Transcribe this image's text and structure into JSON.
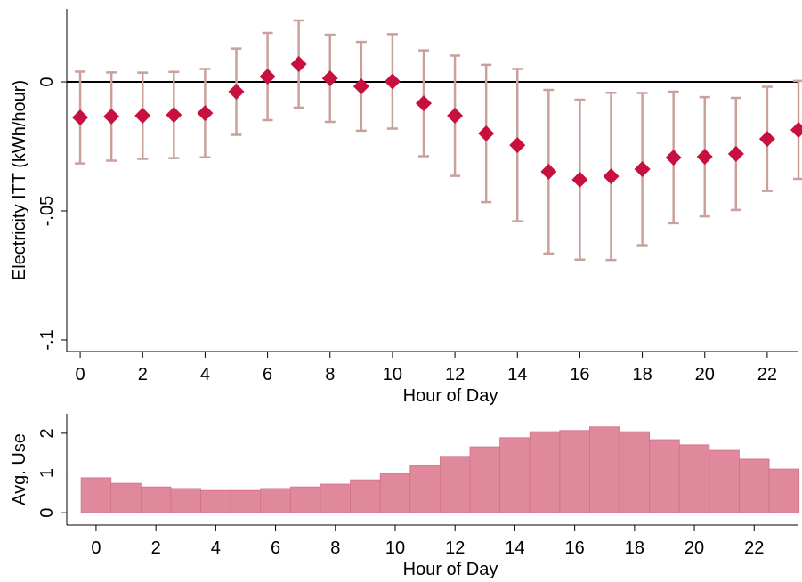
{
  "chart_data": [
    {
      "type": "errorbar",
      "y_label": "Electricity ITT (kWh/hour)",
      "x_label": "Hour of Day",
      "x": [
        0,
        1,
        2,
        3,
        4,
        5,
        6,
        7,
        8,
        9,
        10,
        11,
        12,
        13,
        14,
        15,
        16,
        17,
        18,
        19,
        20,
        21,
        22,
        23
      ],
      "values": [
        -0.0138,
        -0.0134,
        -0.0131,
        -0.0128,
        -0.0121,
        -0.0038,
        0.0021,
        0.0069,
        0.0014,
        -0.0017,
        0.0002,
        -0.0083,
        -0.0131,
        -0.02,
        -0.0245,
        -0.0348,
        -0.0379,
        -0.0366,
        -0.0338,
        -0.0293,
        -0.029,
        -0.0279,
        -0.0221,
        -0.0186
      ],
      "errors": [
        0.0178,
        0.0171,
        0.0167,
        0.0167,
        0.0171,
        0.0167,
        0.0169,
        0.0169,
        0.0169,
        0.0172,
        0.0183,
        0.0205,
        0.0233,
        0.0266,
        0.0295,
        0.0317,
        0.031,
        0.0324,
        0.0295,
        0.0255,
        0.0231,
        0.0217,
        0.0202,
        0.019
      ],
      "color": "#c8103e",
      "error_color": "#c9a09c",
      "reference_line": 0,
      "xlim": [
        -0.43,
        23
      ],
      "ylim": [
        -0.1045,
        0.0283
      ],
      "xticks": [
        0,
        2,
        4,
        6,
        8,
        10,
        12,
        14,
        16,
        18,
        20,
        22
      ],
      "yticks": [
        {
          "value": -0.1,
          "label": "-.1"
        },
        {
          "value": -0.05,
          "label": "-.05"
        },
        0
      ]
    },
    {
      "type": "bar",
      "y_label": "Avg. Use",
      "x_label": "Hour of Day",
      "x": [
        0,
        1,
        2,
        3,
        4,
        5,
        6,
        7,
        8,
        9,
        10,
        11,
        12,
        13,
        14,
        15,
        16,
        17,
        18,
        19,
        20,
        21,
        22,
        23
      ],
      "values": [
        0.88,
        0.74,
        0.65,
        0.61,
        0.56,
        0.56,
        0.61,
        0.65,
        0.72,
        0.83,
        0.99,
        1.19,
        1.42,
        1.66,
        1.89,
        2.04,
        2.07,
        2.16,
        2.04,
        1.84,
        1.71,
        1.57,
        1.35,
        1.1
      ],
      "color": "#e0889c",
      "xlim": [
        -0.98,
        23.48
      ],
      "ylim": [
        -0.31,
        2.49
      ],
      "xticks": [
        0,
        2,
        4,
        6,
        8,
        10,
        12,
        14,
        16,
        18,
        20,
        22
      ],
      "yticks": [
        0,
        1,
        2
      ]
    }
  ]
}
